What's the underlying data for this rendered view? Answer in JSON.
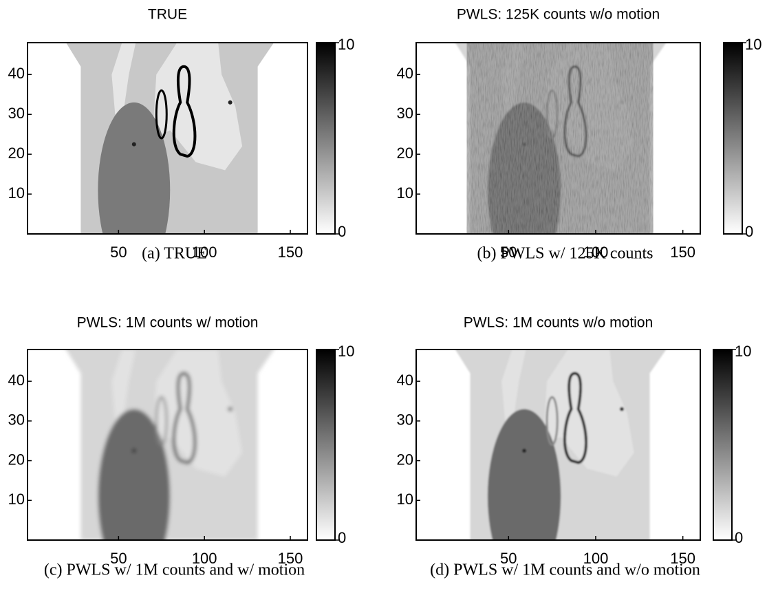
{
  "chart_data": [
    {
      "type": "image",
      "variant": "true",
      "title": "TRUE",
      "caption": "(a) TRUE",
      "xlim": [
        -3,
        160
      ],
      "ylim": [
        0,
        48
      ],
      "xticks": [
        50,
        100,
        150
      ],
      "yticks": [
        10,
        20,
        30,
        40
      ],
      "clim": [
        0,
        10
      ],
      "cticks": [
        0,
        10
      ]
    },
    {
      "type": "image",
      "variant": "noisy",
      "title": "PWLS: 125K counts w/o motion",
      "caption": "(b) PWLS w/ 125K counts",
      "xlim": [
        -3,
        160
      ],
      "ylim": [
        0,
        48
      ],
      "xticks": [
        50,
        100,
        150
      ],
      "yticks": [
        10,
        20,
        30,
        40
      ],
      "clim": [
        0,
        10
      ],
      "cticks": [
        0,
        10
      ]
    },
    {
      "type": "image",
      "variant": "motion",
      "title": "PWLS: 1M counts w/ motion",
      "caption": "(c) PWLS w/ 1M counts and w/ motion",
      "xlim": [
        -3,
        160
      ],
      "ylim": [
        0,
        48
      ],
      "xticks": [
        50,
        100,
        150
      ],
      "yticks": [
        10,
        20,
        30,
        40
      ],
      "clim": [
        0,
        10
      ],
      "cticks": [
        0,
        10
      ]
    },
    {
      "type": "image",
      "variant": "recon",
      "title": "PWLS: 1M counts w/o motion",
      "caption": "(d) PWLS w/ 1M counts and w/o motion",
      "xlim": [
        -3,
        160
      ],
      "ylim": [
        0,
        48
      ],
      "xticks": [
        50,
        100,
        150
      ],
      "yticks": [
        10,
        20,
        30,
        40
      ],
      "clim": [
        0,
        10
      ],
      "cticks": [
        0,
        10
      ]
    }
  ]
}
